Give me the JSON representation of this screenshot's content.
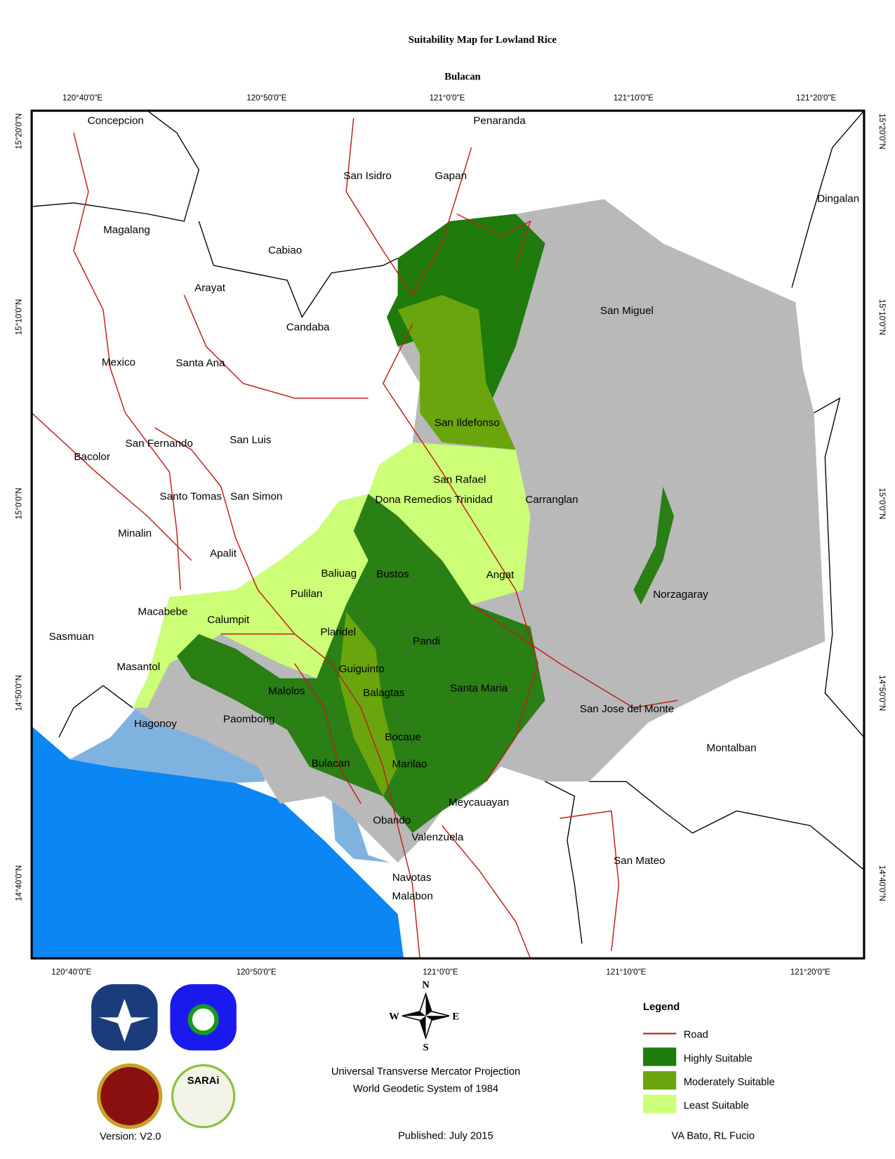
{
  "title": "Suitability Map for Lowland Rice",
  "subtitle": "Bulacan",
  "longitude_ticks": [
    "120°40'0\"E",
    "120°50'0\"E",
    "121°0'0\"E",
    "121°10'0\"E",
    "121°20'0\"E"
  ],
  "latitude_ticks": [
    "15°20'0\"N",
    "15°10'0\"N",
    "15°0'0\"N",
    "14°50'0\"N",
    "14°40'0\"N"
  ],
  "places": [
    "Concepcion",
    "Penaranda",
    "San Isidro",
    "Gapan",
    "Dingalan",
    "Magalang",
    "Cabiao",
    "Arayat",
    "San Miguel",
    "Candaba",
    "Mexico",
    "Santa Ana",
    "San Ildefonso",
    "San Fernando",
    "San Luis",
    "Bacolor",
    "San Rafael",
    "Dona Remedios Trinidad",
    "Carranglan",
    "Santo Tomas",
    "San Simon",
    "Minalin",
    "Apalit",
    "Baliuag",
    "Bustos",
    "Angat",
    "Pulilan",
    "Norzagaray",
    "Macabebe",
    "Calumpit",
    "Sasmuan",
    "Plaridel",
    "Pandi",
    "Masantol",
    "Guiguinto",
    "Santa Maria",
    "Malolos",
    "Balagtas",
    "San Jose del Monte",
    "Paombong",
    "Hagonoy",
    "Bocaue",
    "Montalban",
    "Bulacan",
    "Marilao",
    "Meycauayan",
    "Obando",
    "Valenzuela",
    "San Mateo",
    "Navotas",
    "Malabon"
  ],
  "legend": {
    "title": "Legend",
    "items": [
      {
        "label": "Road",
        "color": "#c0201a"
      },
      {
        "label": "Highly Suitable",
        "color": "#1e7b0c"
      },
      {
        "label": "Moderately Suitable",
        "color": "#6aa50e"
      },
      {
        "label": "Least Suitable",
        "color": "#ccff77"
      }
    ]
  },
  "compass": [
    "N",
    "E",
    "S",
    "W"
  ],
  "projection": [
    "Universal Transverse Mercator Projection",
    "World Geodetic System of 1984"
  ],
  "published": "Published: July 2015",
  "version": "Version: V2.0",
  "authors": "VA Bato, RL Fucio",
  "logo_text": "SARAi"
}
